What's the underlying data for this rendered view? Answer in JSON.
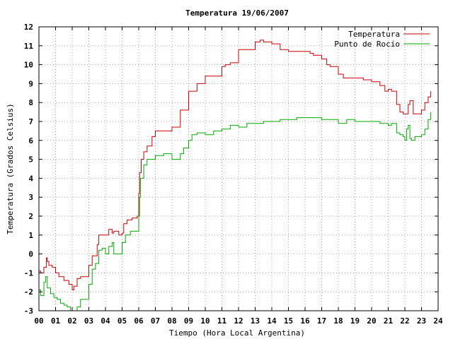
{
  "chart_data": {
    "type": "line",
    "title": "Temperatura 19/06/2007",
    "xlabel": "Tiempo (Hora Local Argentina)",
    "ylabel": "Temperatura (Grados Celsius)",
    "xlim": [
      0,
      24
    ],
    "ylim": [
      -3,
      12
    ],
    "xticks": [
      "00",
      "01",
      "02",
      "03",
      "04",
      "05",
      "06",
      "07",
      "08",
      "09",
      "10",
      "11",
      "12",
      "13",
      "14",
      "15",
      "16",
      "17",
      "18",
      "19",
      "20",
      "21",
      "22",
      "23",
      "24"
    ],
    "yticks": [
      "-3",
      "-2",
      "-1",
      "0",
      "1",
      "2",
      "3",
      "4",
      "5",
      "6",
      "7",
      "8",
      "9",
      "10",
      "11",
      "12"
    ],
    "grid": true,
    "legend_position": "top-right",
    "series": [
      {
        "name": "Temperatura",
        "color": "#cc0000",
        "x": [
          0,
          0.1,
          0.3,
          0.45,
          0.5,
          0.6,
          0.8,
          1.0,
          1.2,
          1.5,
          1.8,
          2.0,
          2.1,
          2.3,
          2.5,
          2.8,
          3.0,
          3.2,
          3.5,
          3.6,
          3.8,
          4.0,
          4.2,
          4.4,
          4.5,
          4.8,
          5.0,
          5.1,
          5.3,
          5.6,
          5.9,
          6.0,
          6.05,
          6.15,
          6.3,
          6.5,
          6.8,
          7.0,
          7.5,
          8.0,
          8.5,
          9.0,
          9.3,
          9.5,
          10.0,
          10.5,
          11.0,
          11.2,
          11.5,
          12.0,
          12.5,
          13.0,
          13.3,
          13.5,
          14.0,
          14.5,
          15.0,
          15.5,
          16.0,
          16.3,
          16.5,
          17.0,
          17.3,
          17.5,
          18.0,
          18.3,
          18.5,
          19.0,
          19.5,
          20.0,
          20.5,
          20.8,
          21.0,
          21.2,
          21.5,
          21.7,
          21.9,
          22.1,
          22.2,
          22.3,
          22.5,
          22.8,
          23.0,
          23.2,
          23.4,
          23.55
        ],
        "y": [
          -0.9,
          -1.0,
          -0.7,
          -0.2,
          -0.4,
          -0.6,
          -0.7,
          -1.0,
          -1.2,
          -1.4,
          -1.6,
          -1.9,
          -1.7,
          -1.3,
          -1.2,
          -1.2,
          -0.6,
          -0.1,
          0.5,
          1.0,
          1.0,
          1.0,
          1.3,
          1.1,
          1.2,
          1.0,
          1.1,
          1.6,
          1.8,
          1.9,
          2.0,
          3.2,
          4.3,
          5.0,
          5.4,
          5.7,
          6.2,
          6.5,
          6.5,
          6.7,
          7.6,
          8.6,
          8.6,
          9.0,
          9.4,
          9.4,
          9.9,
          10.0,
          10.1,
          10.8,
          10.8,
          11.2,
          11.3,
          11.2,
          11.1,
          10.8,
          10.7,
          10.7,
          10.7,
          10.6,
          10.5,
          10.3,
          10.0,
          9.9,
          9.5,
          9.3,
          9.3,
          9.3,
          9.2,
          9.1,
          8.9,
          8.6,
          8.7,
          8.6,
          7.9,
          7.5,
          7.4,
          7.4,
          7.9,
          8.1,
          7.4,
          7.4,
          7.6,
          8.0,
          8.3,
          8.6
        ]
      },
      {
        "name": "Punto de Rocío",
        "color": "#00aa00",
        "x": [
          0,
          0.1,
          0.2,
          0.3,
          0.4,
          0.5,
          0.7,
          0.9,
          1.1,
          1.3,
          1.5,
          1.7,
          1.9,
          2.1,
          2.3,
          2.5,
          2.8,
          3.0,
          3.2,
          3.4,
          3.6,
          3.8,
          4.0,
          4.2,
          4.4,
          4.5,
          4.8,
          5.0,
          5.2,
          5.5,
          5.8,
          6.0,
          6.05,
          6.1,
          6.3,
          6.5,
          7.0,
          7.5,
          8.0,
          8.5,
          8.7,
          9.0,
          9.2,
          9.5,
          10.0,
          10.5,
          11.0,
          11.5,
          12.0,
          12.5,
          13.0,
          13.5,
          14.0,
          14.5,
          15.0,
          15.5,
          16.0,
          16.5,
          17.0,
          17.5,
          18.0,
          18.5,
          19.0,
          19.5,
          20.0,
          20.5,
          21.0,
          21.2,
          21.5,
          21.7,
          21.9,
          22.0,
          22.1,
          22.2,
          22.3,
          22.4,
          22.6,
          22.8,
          23.0,
          23.2,
          23.4,
          23.55
        ],
        "y": [
          -1.9,
          -2.2,
          -2.2,
          -1.5,
          -1.2,
          -1.8,
          -2.1,
          -2.3,
          -2.4,
          -2.6,
          -2.7,
          -2.8,
          -3.0,
          -3.1,
          -2.8,
          -2.4,
          -2.4,
          -1.6,
          -0.8,
          -0.5,
          0.2,
          0.3,
          0.0,
          0.4,
          0.6,
          0.0,
          0.0,
          0.6,
          1.0,
          1.2,
          1.2,
          2.0,
          3.0,
          4.0,
          4.7,
          5.0,
          5.2,
          5.3,
          5.0,
          5.3,
          5.6,
          6.0,
          6.3,
          6.4,
          6.3,
          6.5,
          6.6,
          6.8,
          6.7,
          6.9,
          6.9,
          7.0,
          7.0,
          7.1,
          7.1,
          7.2,
          7.2,
          7.2,
          7.1,
          7.1,
          6.9,
          7.1,
          7.0,
          7.0,
          7.0,
          6.9,
          6.8,
          6.9,
          6.4,
          6.3,
          6.2,
          6.0,
          6.6,
          6.8,
          6.1,
          6.0,
          6.2,
          6.2,
          6.3,
          6.6,
          7.1,
          7.5
        ]
      }
    ]
  }
}
